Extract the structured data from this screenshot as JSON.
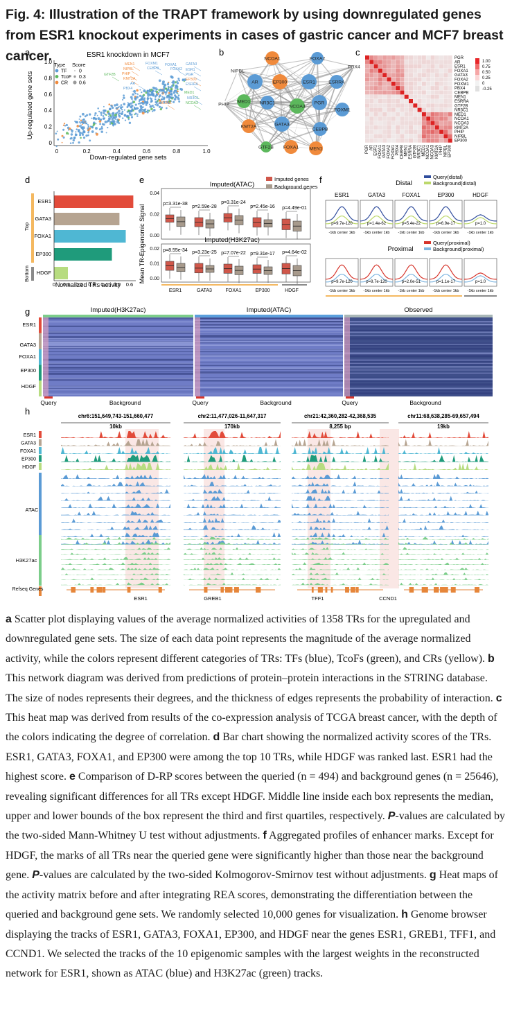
{
  "title": "Fig. 4: Illustration of the TRAPT framework by using downregulated genes from ESR1 knockout experiments in cases of gastric cancer and MCF7 breast cancer.",
  "panels": {
    "a": {
      "letter": "a",
      "title": "ESR1 knockdown in MCF7",
      "xlabel": "Down-regulated gene sets",
      "ylabel": "Up-regulated gene sets",
      "legend_type": "Type",
      "legend_score": "Score",
      "legend_items": [
        {
          "label": "TF",
          "color": "#5b9bd5",
          "score": "0"
        },
        {
          "label": "TcoF",
          "color": "#5cb85c",
          "score": "0.3"
        },
        {
          "label": "CR",
          "color": "#f08a3c",
          "score": "0.6"
        }
      ],
      "labels": [
        {
          "text": "MEN1",
          "color": "#f08a3c"
        },
        {
          "text": "FOXM1",
          "color": "#5b9bd5"
        },
        {
          "text": "FOXA1",
          "color": "#5b9bd5"
        },
        {
          "text": "GATA3",
          "color": "#5b9bd5"
        },
        {
          "text": "NIPBL",
          "color": "#f08a3c"
        },
        {
          "text": "CEBPB",
          "color": "#5b9bd5"
        },
        {
          "text": "ESR1",
          "color": "#5b9bd5"
        },
        {
          "text": "PHIP",
          "color": "#f08a3c"
        },
        {
          "text": "FOXA2",
          "color": "#5b9bd5"
        },
        {
          "text": "GTF2B",
          "color": "#5cb85c"
        },
        {
          "text": "KMT2A",
          "color": "#f08a3c"
        },
        {
          "text": "PGR",
          "color": "#5b9bd5"
        },
        {
          "text": "EP300",
          "color": "#f08a3c"
        },
        {
          "text": "AR",
          "color": "#5b9bd5"
        },
        {
          "text": "ESRRA",
          "color": "#5b9bd5"
        },
        {
          "text": "MED1",
          "color": "#5cb85c"
        },
        {
          "text": "NCOA1",
          "color": "#f08a3c"
        },
        {
          "text": "NR3C1",
          "color": "#5b9bd5"
        },
        {
          "text": "NCOA3",
          "color": "#5cb85c"
        },
        {
          "text": "PBX4",
          "color": "#5b9bd5"
        }
      ]
    },
    "b": {
      "letter": "b",
      "nodes": [
        {
          "label": "NCOA1",
          "color": "#f08a3c"
        },
        {
          "label": "FOXA2",
          "color": "#5b9bd5"
        },
        {
          "label": "PBX4",
          "color": "#ffffff"
        },
        {
          "label": "NIPBL",
          "color": "#ffffff"
        },
        {
          "label": "AR",
          "color": "#5b9bd5"
        },
        {
          "label": "EP300",
          "color": "#f08a3c"
        },
        {
          "label": "ESR1",
          "color": "#5b9bd5"
        },
        {
          "label": "ESRRA",
          "color": "#5b9bd5"
        },
        {
          "label": "PHIP",
          "color": "#ffffff"
        },
        {
          "label": "MED1",
          "color": "#5cb85c"
        },
        {
          "label": "NR3C1",
          "color": "#5b9bd5"
        },
        {
          "label": "NCOA3",
          "color": "#5cb85c"
        },
        {
          "label": "PGR",
          "color": "#5b9bd5"
        },
        {
          "label": "FOXM1",
          "color": "#5b9bd5"
        },
        {
          "label": "KMT2A",
          "color": "#f08a3c"
        },
        {
          "label": "GATA3",
          "color": "#5b9bd5"
        },
        {
          "label": "CEBPB",
          "color": "#5b9bd5"
        },
        {
          "label": "GTF2B",
          "color": "#5cb85c"
        },
        {
          "label": "FOXA1",
          "color": "#f08a3c"
        },
        {
          "label": "MEN1",
          "color": "#f08a3c"
        }
      ]
    },
    "c": {
      "letter": "c",
      "rows": [
        "PGR",
        "AR",
        "ESR1",
        "FOXA1",
        "GATA3",
        "FOXA2",
        "FOXM1",
        "PBX4",
        "CEBPB",
        "MEN1",
        "ESRRA",
        "GTF2B",
        "NR3C1",
        "MED1",
        "NCOA1",
        "NCOA3",
        "KMT2A",
        "PHIP",
        "NIPBL",
        "EP300"
      ],
      "scale_ticks": [
        "1.00",
        "0.75",
        "0.50",
        "0.25",
        "0",
        "-0.25"
      ]
    },
    "d": {
      "letter": "d",
      "xlabel": "Normalized TRs activity",
      "group_top": "Top",
      "group_bottom": "Bottom",
      "ticks": [
        "0",
        "0.1",
        "0.2",
        "0.3",
        "0.4",
        "0.5",
        "0.6"
      ]
    },
    "e": {
      "letter": "e",
      "ylabel": "Mean TR-Epigenomic Signal",
      "top_title": "Imputed(ATAC)",
      "bottom_title": "Imputed(H3K27ac)",
      "legend": [
        "Imputed genes",
        "Background genes"
      ],
      "top_pvalues": [
        "p=3.31e-38",
        "p=2.59e-28",
        "p=3.31e-24",
        "p=2.45e-16",
        "p=4.49e-01"
      ],
      "bottom_pvalues": [
        "p=8.55e-34",
        "p=3.23e-25",
        "p=7.07e-22",
        "p=9.31e-17",
        "p=4.64e-02"
      ],
      "top_yticks": [
        "0.04",
        "0.02",
        "0.00"
      ],
      "bottom_yticks": [
        "0.02",
        "0.01",
        "0.00"
      ]
    },
    "f": {
      "letter": "f",
      "distal_title": "Distal",
      "proximal_title": "Proximal",
      "legend_distal": [
        "Query(distal)",
        "Background(distal)"
      ],
      "legend_proximal": [
        "Query(proximal)",
        "Background(proximal)"
      ],
      "distal_pvalues": [
        "p=9.7e-120",
        "p=1.4e-62",
        "p=5.4e-22",
        "p=6.9e-17",
        "p=1.0"
      ],
      "proximal_pvalues": [
        "p=9.7e-120",
        "p=9.7e-120",
        "p=2.0e-51",
        "p=1.1e-17",
        "p=1.0"
      ],
      "xaxis": "-1kb  center  1kb"
    },
    "g": {
      "letter": "g",
      "sections": [
        "Imputed(H3K27ac)",
        "Imputed(ATAC)",
        "Observed"
      ],
      "bottom_labels": [
        "Query",
        "Background"
      ]
    },
    "h": {
      "letter": "h",
      "loci": [
        {
          "coord": "chr6:151,649,743-151,660,477",
          "scale": "10kb",
          "gene": "ESR1"
        },
        {
          "coord": "chr2:11,477,026-11,647,317",
          "scale": "170kb",
          "gene": "GREB1"
        },
        {
          "coord": "chr21:42,360,282-42,368,535",
          "scale": "8,255 bp",
          "gene": "TFF1"
        },
        {
          "coord": "chr11:68,638,285-69,657,494",
          "scale": "19kb",
          "gene": "CCND1"
        }
      ],
      "track_groups": [
        "ATAC",
        "H3K27ac"
      ],
      "refseq": "Refseq Genes"
    },
    "tr_names": [
      "ESR1",
      "GATA3",
      "FOXA1",
      "EP300",
      "HDGF"
    ],
    "tr_colors": [
      "#e24b3a",
      "#b6a491",
      "#4fb7d3",
      "#1f9b7b",
      "#b7dc80"
    ],
    "d_values": [
      0.63,
      0.52,
      0.57,
      0.46,
      0.11
    ]
  },
  "caption": {
    "a_letter": "a",
    "a_text": " Scatter plot displaying values of the average normalized activities of 1358 TRs for the upregulated and downregulated gene sets. The size of each data point represents the magnitude of the average normalized activity, while the colors represent different categories of TRs: TFs (blue), TcoFs (green), and CRs (yellow). ",
    "b_letter": "b",
    "b_text": " This network diagram was derived from predictions of protein–protein interactions in the STRING database. The size of nodes represents their degrees, and the thickness of edges represents the probability of interaction. ",
    "c_letter": "c",
    "c_text": " This heat map was derived from results of the co-expression analysis of TCGA breast cancer, with the depth of the colors indicating the degree of correlation. ",
    "d_letter": "d",
    "d_text": " Bar chart showing the normalized activity scores of the TRs. ESR1, GATA3, FOXA1, and EP300 were among the top 10 TRs, while HDGF was ranked last. ESR1 had the highest score. ",
    "e_letter": "e",
    "e_text": " Comparison of D-RP scores between the queried (n = 494) and background genes (n = 25646), revealing significant differences for all TRs except HDGF. Middle line inside each box represents the median, upper and lower bounds of the box represent the third and first quartiles, respectively. ",
    "p1": "P",
    "e_text2": "-values are calculated by the two-sided Mann-Whitney U test without adjustments. ",
    "f_letter": "f",
    "f_text": " Aggregated profiles of enhancer marks. Except for HDGF, the marks of all TRs near the queried gene were significantly higher than those near the background gene. ",
    "p2": "P",
    "f_text2": "-values are calculated by the two-sided Kolmogorov-Smirnov test without adjustments. ",
    "g_letter": "g",
    "g_text": " Heat maps of the activity matrix before and after integrating REA scores, demonstrating the differentiation between the queried and background gene sets. We randomly selected 10,000 genes for visualization. ",
    "h_letter": "h",
    "h_text": " Genome browser displaying the tracks of ESR1, GATA3, FOXA1, EP300, and HDGF near the genes ESR1, GREB1, TFF1, and CCND1. We selected the tracks of the 10 epigenomic samples with the largest weights in the reconstructed network for ESR1, shown as ATAC (blue) and H3K27ac (green) tracks."
  }
}
